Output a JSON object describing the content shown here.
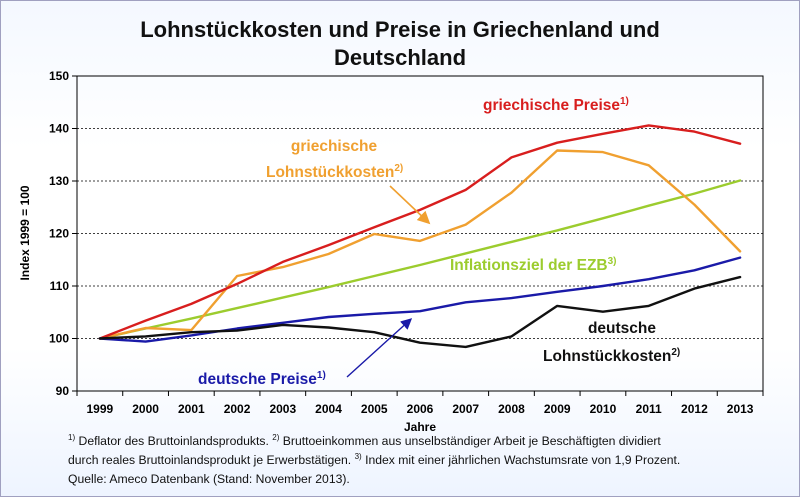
{
  "title_line1": "Lohnstückkosten und Preise in Griechenland und",
  "title_line2": "Deutschland",
  "footnotes": {
    "marker1": "1)",
    "note1": " Deflator des Bruttoinlandsprodukts. ",
    "marker2": "2)",
    "note2a": " Bruttoeinkommen aus unselbständiger Arbeit je Beschäftigten dividiert",
    "note2b": "durch reales Bruttoinlandsprodukt je Erwerbstätigen. ",
    "marker3": "3)",
    "note3": " Index mit einer jährlichen Wachstumsrate von 1,9 Prozent.",
    "source": "Quelle: Ameco Datenbank (Stand: November 2013)."
  },
  "chart_data": {
    "type": "line",
    "xlabel": "Jahre",
    "ylabel": "Index 1999 = 100",
    "ylim": [
      90,
      150
    ],
    "yticks": [
      90,
      100,
      110,
      120,
      130,
      140,
      150
    ],
    "grid": true,
    "x": [
      "1999",
      "2000",
      "2001",
      "2002",
      "2003",
      "2004",
      "2005",
      "2006",
      "2007",
      "2008",
      "2009",
      "2010",
      "2011",
      "2012",
      "2013"
    ],
    "series": [
      {
        "key": "gr_preise",
        "color": "#d81e1e",
        "values": [
          100,
          103.4,
          106.6,
          110.4,
          114.6,
          117.8,
          121.2,
          124.5,
          128.3,
          134.5,
          137.3,
          139,
          140.6,
          139.4,
          137.1
        ],
        "label_main": "griechische Preise",
        "label_sup": "1)"
      },
      {
        "key": "gr_lsk",
        "color": "#f0a030",
        "values": [
          100,
          102,
          101.6,
          111.9,
          113.6,
          116.1,
          119.9,
          118.6,
          121.7,
          127.8,
          135.8,
          135.5,
          133,
          125.5,
          116.6
        ],
        "label_line1": "griechische",
        "label_main": "Lohnstückkosten",
        "label_sup": "2)"
      },
      {
        "key": "ezb",
        "color": "#9ccc2e",
        "values": [
          100,
          101.9,
          103.8,
          105.8,
          107.8,
          109.8,
          111.9,
          114,
          116.2,
          118.4,
          120.6,
          122.9,
          125.3,
          127.6,
          130.1
        ],
        "label_main": "Inflationsziel der EZB",
        "label_sup": "3)"
      },
      {
        "key": "de_preise",
        "color": "#1a1aa8",
        "values": [
          100,
          99.4,
          100.6,
          101.9,
          103,
          104.1,
          104.7,
          105.2,
          106.9,
          107.7,
          108.9,
          110,
          111.3,
          113,
          115.4
        ],
        "label_main": "deutsche Preise",
        "label_sup": "1)"
      },
      {
        "key": "de_lsk",
        "color": "#111111",
        "values": [
          100,
          100.4,
          101.2,
          101.5,
          102.6,
          102.1,
          101.2,
          99.2,
          98.4,
          100.4,
          106.2,
          105.1,
          106.2,
          109.5,
          111.7
        ],
        "label_line1": "deutsche",
        "label_main": "Lohnstückkosten",
        "label_sup": "2)"
      }
    ]
  }
}
